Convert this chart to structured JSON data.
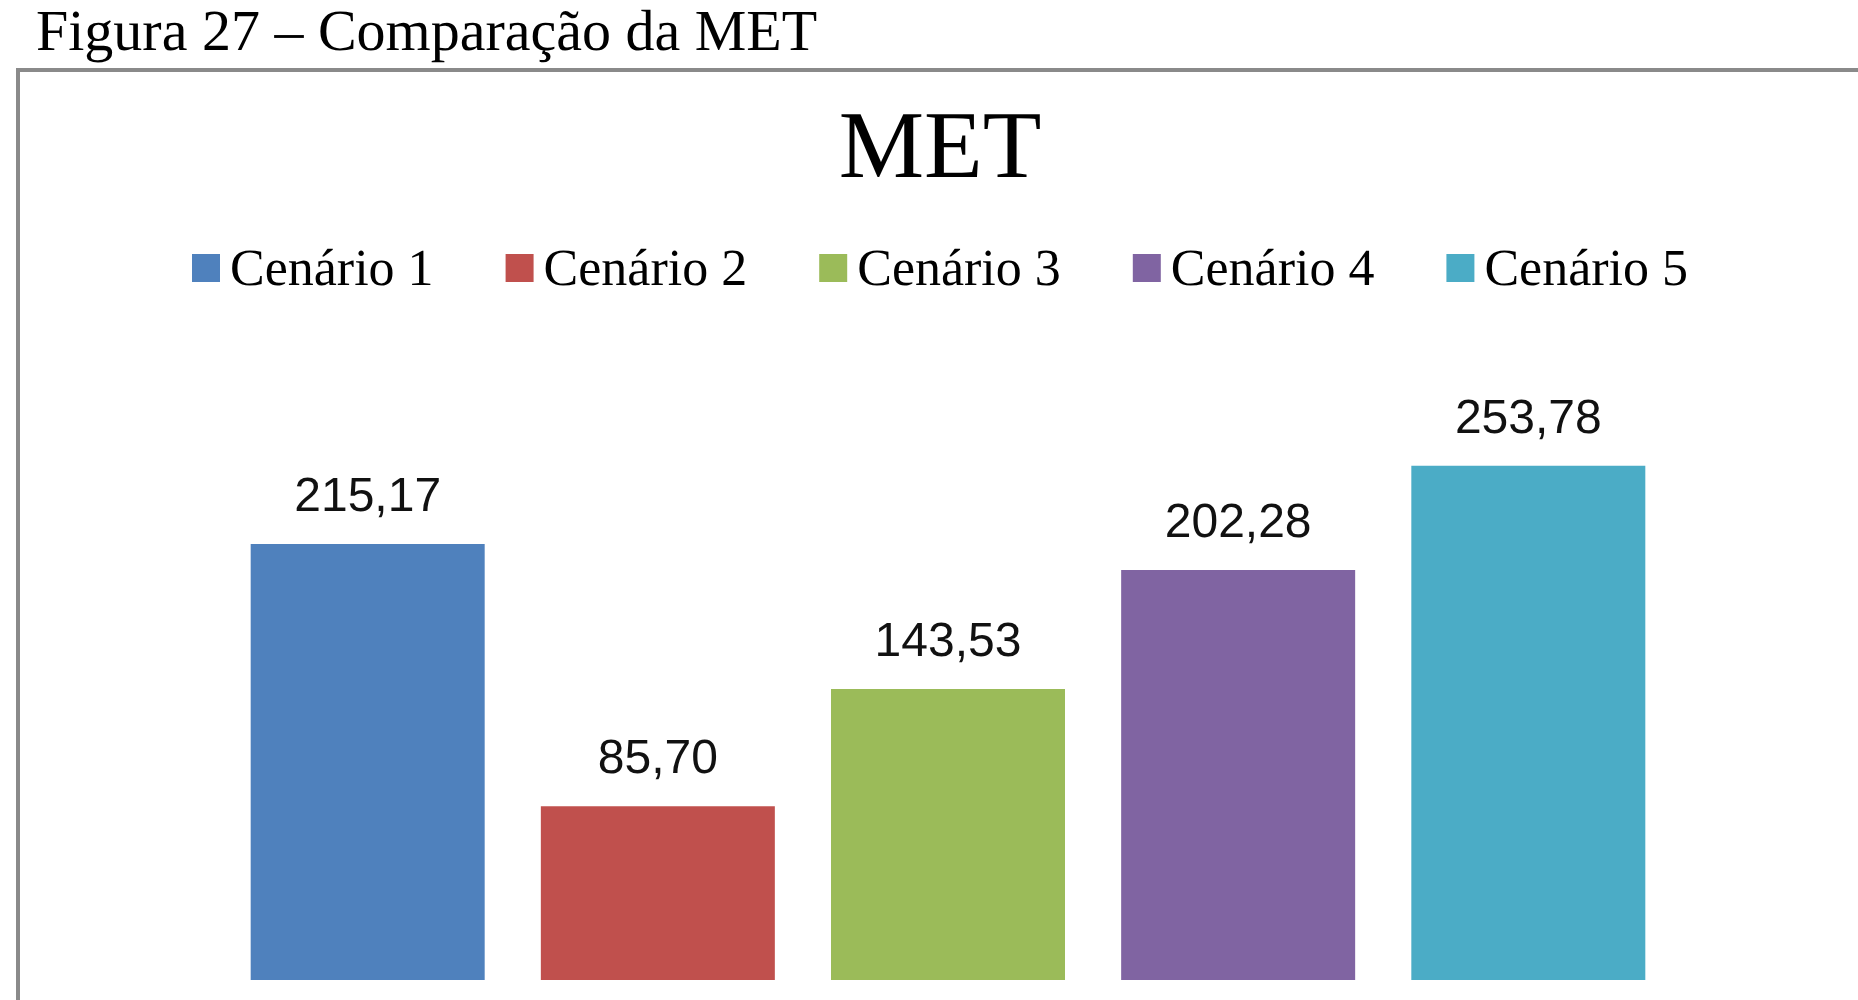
{
  "chart_data": {
    "type": "bar",
    "title": "MET",
    "annotations": [
      "Figura 27 – Comparação da MET"
    ],
    "categories": [
      null
    ],
    "series": [
      {
        "name": "Cenário 1",
        "color": "#4f81bd",
        "values": [
          215.17
        ],
        "value_labels": [
          "215,17"
        ]
      },
      {
        "name": "Cenário 2",
        "color": "#c0504d",
        "values": [
          85.7
        ],
        "value_labels": [
          "85,70"
        ]
      },
      {
        "name": "Cenário 3",
        "color": "#9bbb59",
        "values": [
          143.53
        ],
        "value_labels": [
          "143,53"
        ]
      },
      {
        "name": "Cenário 4",
        "color": "#8064a2",
        "values": [
          202.28
        ],
        "value_labels": [
          "202,28"
        ]
      },
      {
        "name": "Cenário 5",
        "color": "#4bacc6",
        "values": [
          253.78
        ],
        "value_labels": [
          "253,78"
        ]
      }
    ],
    "legend": "top",
    "grid": false,
    "tick_labels": false
  }
}
